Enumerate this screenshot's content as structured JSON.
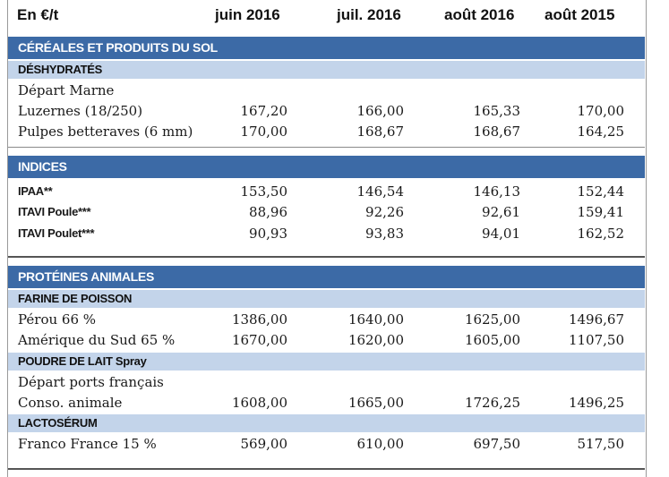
{
  "header": {
    "unit": "En €/t",
    "columns": [
      "juin 2016",
      "juil. 2016",
      "août 2016",
      "août 2015"
    ]
  },
  "sections": [
    {
      "title": "CÉRÉALES ET PRODUITS DU SOL",
      "subsections": [
        {
          "title": "DÉSHYDRATÉS",
          "rows": [
            {
              "label": "Départ Marne",
              "values": [
                "",
                "",
                "",
                ""
              ]
            },
            {
              "label": "Luzernes (18/250)",
              "values": [
                "167,20",
                "166,00",
                "165,33",
                "170,00"
              ]
            },
            {
              "label": "Pulpes betteraves (6 mm)",
              "values": [
                "170,00",
                "168,67",
                "168,67",
                "164,25"
              ]
            }
          ]
        }
      ]
    },
    {
      "title": "INDICES",
      "rows": [
        {
          "label": "IPAA**",
          "values": [
            "153,50",
            "146,54",
            "146,13",
            "152,44"
          ]
        },
        {
          "label": "ITAVI Poule***",
          "values": [
            "88,96",
            "92,26",
            "92,61",
            "159,41"
          ]
        },
        {
          "label": "ITAVI Poulet***",
          "values": [
            "90,93",
            "93,83",
            "94,01",
            "162,52"
          ]
        }
      ]
    },
    {
      "title": "PROTÉINES ANIMALES",
      "subsections": [
        {
          "title": "FARINE DE POISSON",
          "rows": [
            {
              "label": "Pérou 66 %",
              "values": [
                "1386,00",
                "1640,00",
                "1625,00",
                "1496,67"
              ]
            },
            {
              "label": "Amérique du Sud 65 %",
              "values": [
                "1670,00",
                "1620,00",
                "1605,00",
                "1107,50"
              ]
            }
          ]
        },
        {
          "title": "POUDRE DE LAIT Spray",
          "rows": [
            {
              "label": "Départ ports français",
              "values": [
                "",
                "",
                "",
                ""
              ]
            },
            {
              "label": "Conso. animale",
              "values": [
                "1608,00",
                "1665,00",
                "1726,25",
                "1496,25"
              ]
            }
          ]
        },
        {
          "title": "LACTOSÉRUM",
          "rows": [
            {
              "label": "Franco France 15 %",
              "values": [
                "569,00",
                "610,00",
                "697,50",
                "517,50"
              ]
            }
          ]
        }
      ]
    }
  ]
}
